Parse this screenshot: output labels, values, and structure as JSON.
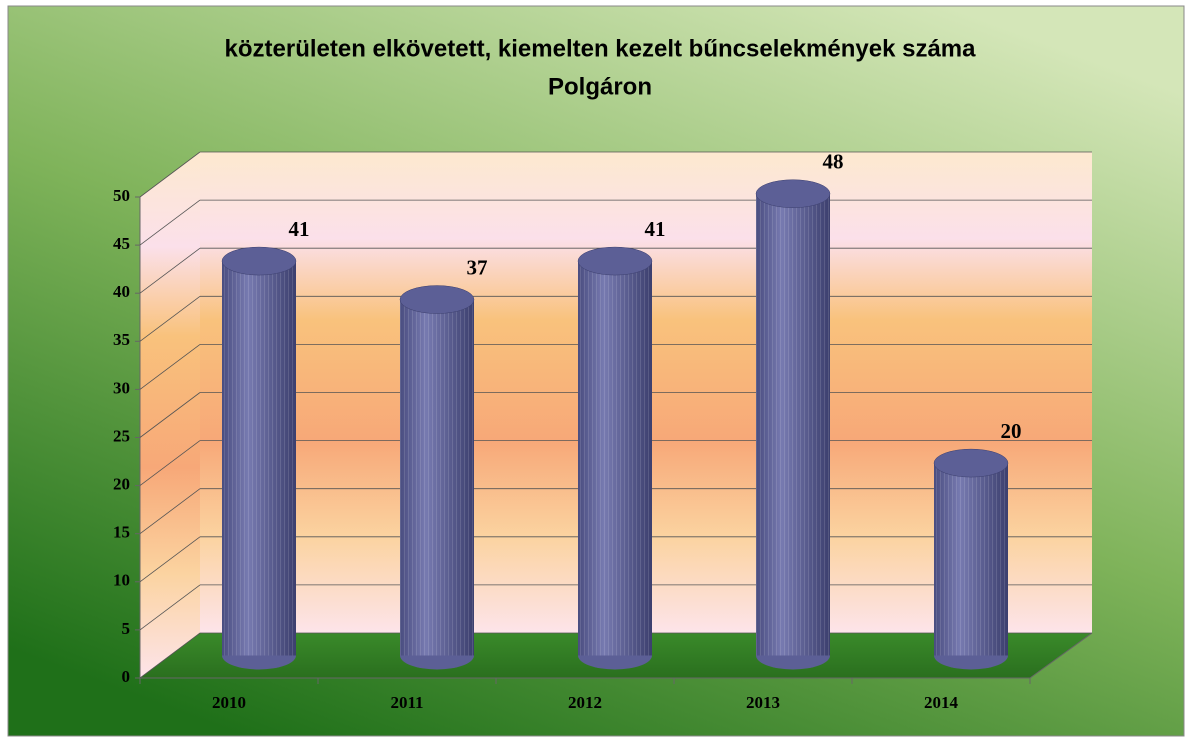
{
  "chart_data": {
    "type": "bar3d",
    "title": [
      "közterületen elkövetett, kiemelten kezelt bűncselekmények száma",
      "Polgáron"
    ],
    "categories": [
      "2010",
      "2011",
      "2012",
      "2013",
      "2014"
    ],
    "values": [
      41,
      37,
      41,
      48,
      20
    ],
    "color": "#5c5f96",
    "ylim": [
      0,
      50
    ],
    "yticks": [
      0,
      5,
      10,
      15,
      20,
      25,
      30,
      35,
      40,
      45,
      50
    ],
    "grid": true
  }
}
